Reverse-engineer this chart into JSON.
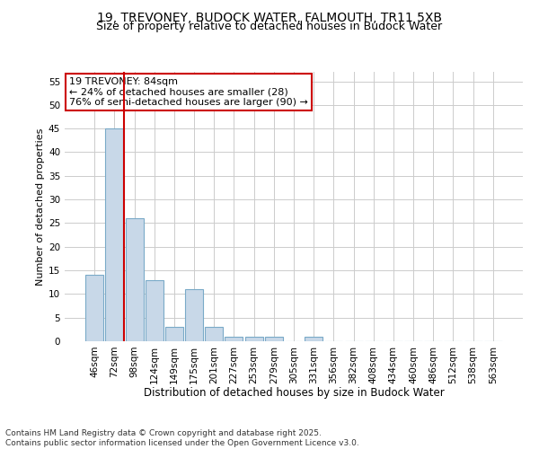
{
  "title1": "19, TREVONEY, BUDOCK WATER, FALMOUTH, TR11 5XB",
  "title2": "Size of property relative to detached houses in Budock Water",
  "xlabel": "Distribution of detached houses by size in Budock Water",
  "ylabel": "Number of detached properties",
  "categories": [
    "46sqm",
    "72sqm",
    "98sqm",
    "124sqm",
    "149sqm",
    "175sqm",
    "201sqm",
    "227sqm",
    "253sqm",
    "279sqm",
    "305sqm",
    "331sqm",
    "356sqm",
    "382sqm",
    "408sqm",
    "434sqm",
    "460sqm",
    "486sqm",
    "512sqm",
    "538sqm",
    "563sqm"
  ],
  "values": [
    14,
    45,
    26,
    13,
    3,
    11,
    3,
    1,
    1,
    1,
    0,
    1,
    0,
    0,
    0,
    0,
    0,
    0,
    0,
    0,
    0
  ],
  "bar_color": "#c8d8e8",
  "bar_edge_color": "#7aaac8",
  "vline_x": 1.5,
  "vline_color": "#cc0000",
  "annotation_text": "19 TREVONEY: 84sqm\n← 24% of detached houses are smaller (28)\n76% of semi-detached houses are larger (90) →",
  "annotation_box_color": "#ffffff",
  "annotation_box_edge": "#cc0000",
  "ylim": [
    0,
    57
  ],
  "yticks": [
    0,
    5,
    10,
    15,
    20,
    25,
    30,
    35,
    40,
    45,
    50,
    55
  ],
  "grid_color": "#cccccc",
  "background_color": "#ffffff",
  "footer": "Contains HM Land Registry data © Crown copyright and database right 2025.\nContains public sector information licensed under the Open Government Licence v3.0.",
  "title1_fontsize": 10,
  "title2_fontsize": 9,
  "xlabel_fontsize": 8.5,
  "ylabel_fontsize": 8,
  "tick_fontsize": 7.5,
  "annotation_fontsize": 8,
  "footer_fontsize": 6.5
}
